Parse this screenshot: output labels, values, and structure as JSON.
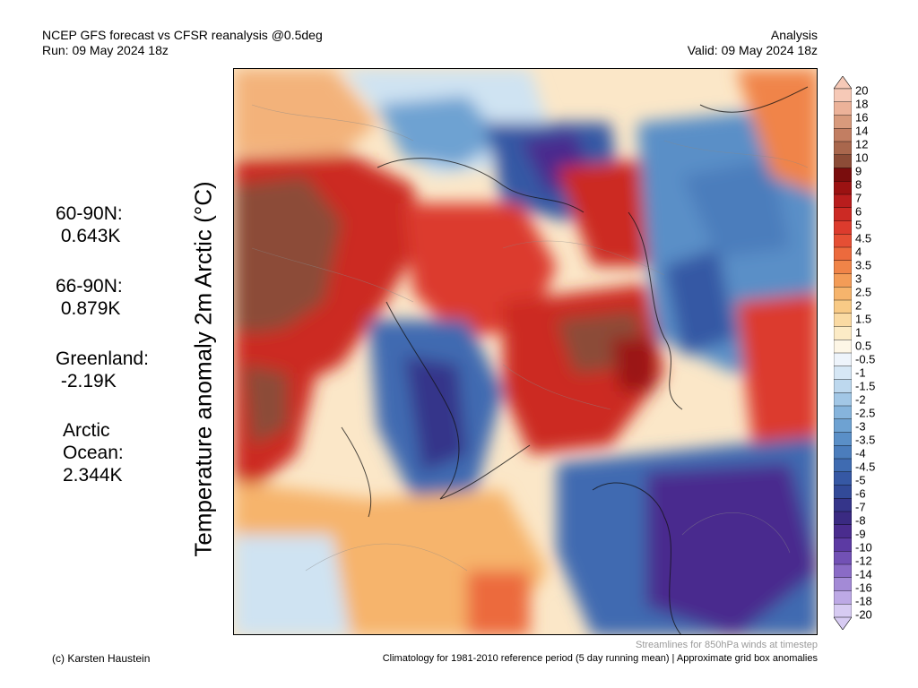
{
  "header": {
    "line1": "NCEP GFS forecast vs CFSR reanalysis @0.5deg",
    "line2": "Run: 09 May 2024 18z",
    "right1": "Analysis",
    "right2": "Valid: 09 May 2024 18z"
  },
  "axis_label": "Temperature anomaly 2m Arctic (°C)",
  "stats": [
    {
      "lines": [
        "60-90N:",
        " 0.643K"
      ]
    },
    {
      "lines": [
        "66-90N:",
        " 0.879K"
      ]
    },
    {
      "lines": [
        "Greenland:",
        " -2.19K"
      ]
    },
    {
      "lines": [
        "Arctic",
        "Ocean:",
        "2.344K"
      ]
    }
  ],
  "colorbar": {
    "labels": [
      "20",
      "18",
      "16",
      "14",
      "12",
      "10",
      "9",
      "8",
      "7",
      "6",
      "5",
      "4.5",
      "4",
      "3.5",
      "3",
      "2.5",
      "2",
      "1.5",
      "1",
      "0.5",
      "-0.5",
      "-1",
      "-1.5",
      "-2",
      "-2.5",
      "-3",
      "-3.5",
      "-4",
      "-4.5",
      "-5",
      "-6",
      "-7",
      "-8",
      "-9",
      "-10",
      "-12",
      "-14",
      "-16",
      "-18",
      "-20"
    ],
    "colors": [
      "#f6c9b7",
      "#ecb299",
      "#d89a7c",
      "#c27e62",
      "#a9674d",
      "#8c4c37",
      "#7a0d0d",
      "#9b1212",
      "#b81d1d",
      "#cc2a24",
      "#dc3b2d",
      "#e54f34",
      "#ec6a3d",
      "#f08448",
      "#f39c57",
      "#f6b46c",
      "#f8ca86",
      "#fadaa3",
      "#fcebc6",
      "#fdf6e6",
      "#eef4fb",
      "#d6e7f5",
      "#bdd8ee",
      "#a2c7e6",
      "#86b4dc",
      "#6ea2d2",
      "#5a8fc7",
      "#4b7dbc",
      "#3f6bb1",
      "#3658a4",
      "#324a98",
      "#35358a",
      "#3a2a82",
      "#4a2c8e",
      "#5c3aa3",
      "#7251b5",
      "#8a6bc6",
      "#a38ad6",
      "#bda9e5",
      "#d7cbf2"
    ]
  },
  "footer": {
    "credit": "(c) Karsten Haustein",
    "streamlines": "Streamlines for 850hPa winds at timestep",
    "climatology": "Climatology for 1981-2010 reference period (5 day running mean) | Approximate grid box anomalies"
  }
}
